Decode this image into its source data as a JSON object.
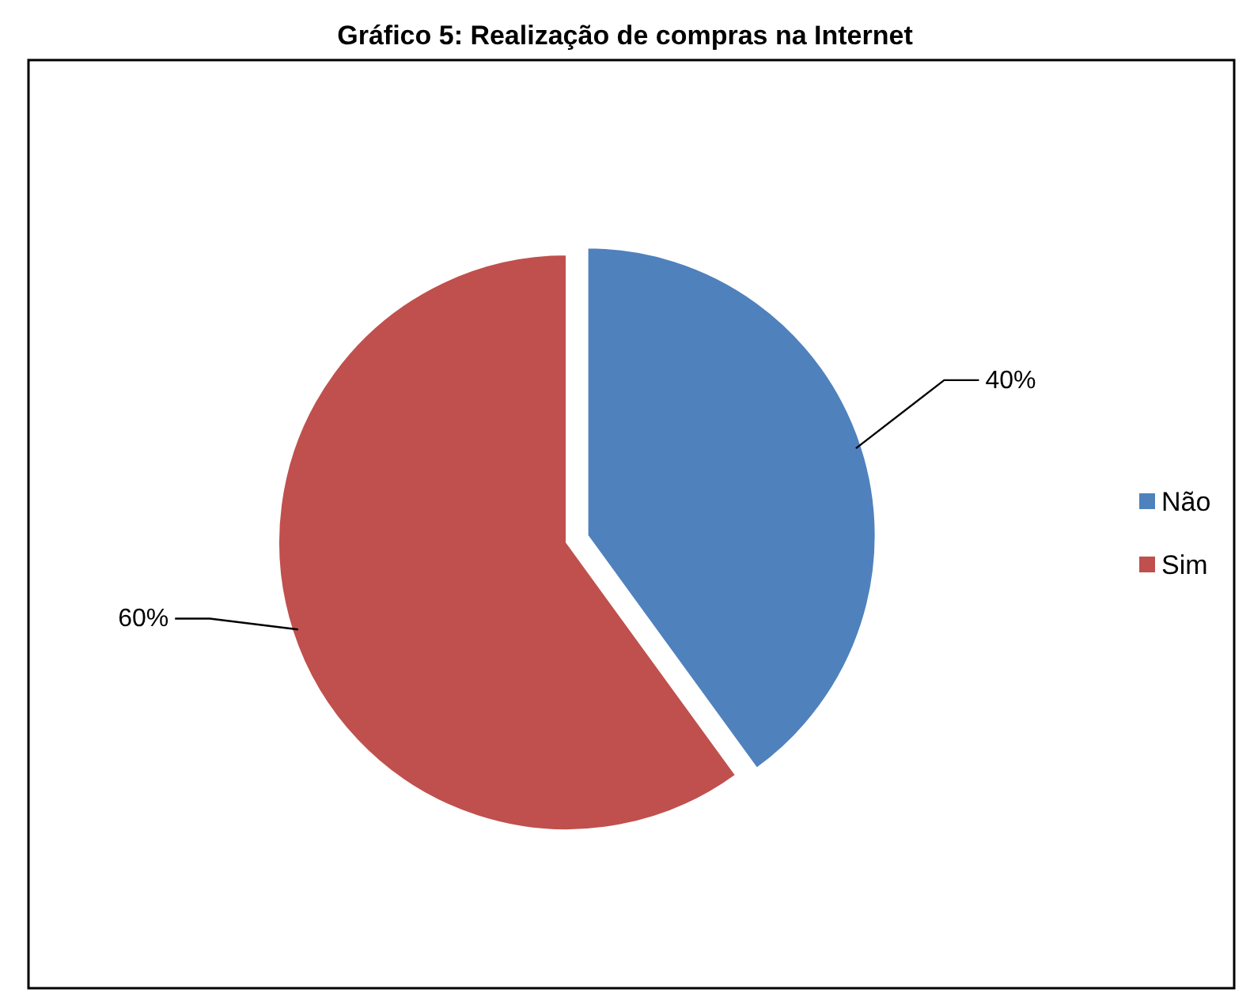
{
  "chart_data": {
    "type": "pie",
    "title": "Gráfico 5: Realização de compras na Internet",
    "categories": [
      "Não",
      "Sim"
    ],
    "values": [
      40,
      60
    ],
    "value_labels": [
      "40%",
      "60%"
    ],
    "colors": [
      "#4f81bd",
      "#c0504d"
    ],
    "legend": "right"
  }
}
